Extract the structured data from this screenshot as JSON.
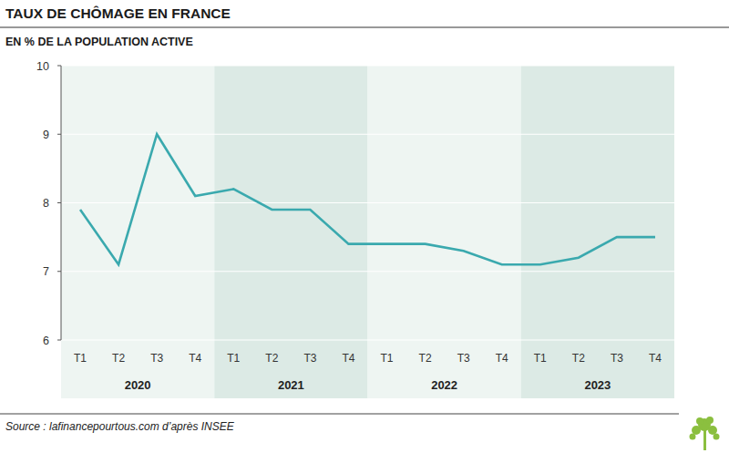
{
  "chart_data": {
    "type": "line",
    "title": "TAUX DE CHÔMAGE EN FRANCE",
    "subtitle": "EN % DE LA POPULATION ACTIVE",
    "categories": [
      "T1",
      "T2",
      "T3",
      "T4",
      "T1",
      "T2",
      "T3",
      "T4",
      "T1",
      "T2",
      "T3",
      "T4",
      "T1",
      "T2",
      "T3",
      "T4"
    ],
    "groups": [
      "2020",
      "2021",
      "2022",
      "2023"
    ],
    "values": [
      7.9,
      7.1,
      9.0,
      8.1,
      8.2,
      7.9,
      7.9,
      7.4,
      7.4,
      7.4,
      7.3,
      7.1,
      7.1,
      7.2,
      7.5,
      7.5
    ],
    "color": "#3aa9ae",
    "ylim": [
      6,
      10
    ],
    "yticks": [
      6,
      7,
      8,
      9,
      10
    ],
    "grid": true,
    "source": "Source : lafinancepourtous.com d’après INSEE"
  }
}
